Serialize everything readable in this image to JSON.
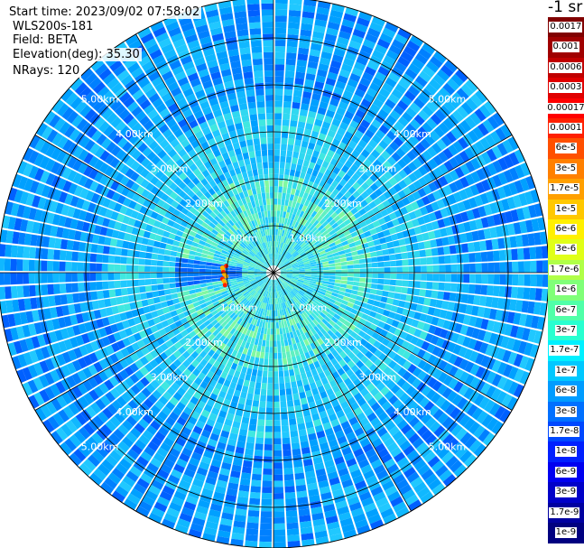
{
  "header": {
    "start_time": "Start time: 2023/09/02 07:58:02",
    "instrument": "WLS200s-181",
    "field": "Field: BETA",
    "elevation": "Elevation(deg): 35.30",
    "nrays": "NRays: 120"
  },
  "range_labels": [
    "1.00km",
    "2.00km",
    "3.00km",
    "4.00km",
    "5.00km"
  ],
  "colorbar": {
    "title": "-1 sr",
    "labels": [
      "0.0017",
      "0.001",
      "0.0006",
      "0.0003",
      "0.00017",
      "0.0001",
      "6e-5",
      "3e-5",
      "1.7e-5",
      "1e-5",
      "6e-6",
      "3e-6",
      "1.7e-6",
      "1e-6",
      "6e-7",
      "3e-7",
      "1.7e-7",
      "1e-7",
      "6e-8",
      "3e-8",
      "1.7e-8",
      "1e-8",
      "6e-9",
      "3e-9",
      "1.7e-9",
      "1e-9"
    ],
    "colors": [
      "#800000",
      "#a00000",
      "#c00000",
      "#e00000",
      "#ff0000",
      "#ff2000",
      "#ff5000",
      "#ff8000",
      "#ffa000",
      "#ffc800",
      "#fff000",
      "#e0ff18",
      "#b0ff48",
      "#80ff78",
      "#50ffa8",
      "#28ffd0",
      "#00f0ff",
      "#00c8ff",
      "#009cff",
      "#0070ff",
      "#0048ff",
      "#0020ff",
      "#0000f0",
      "#0000c8",
      "#0000a0",
      "#000080"
    ]
  }
}
